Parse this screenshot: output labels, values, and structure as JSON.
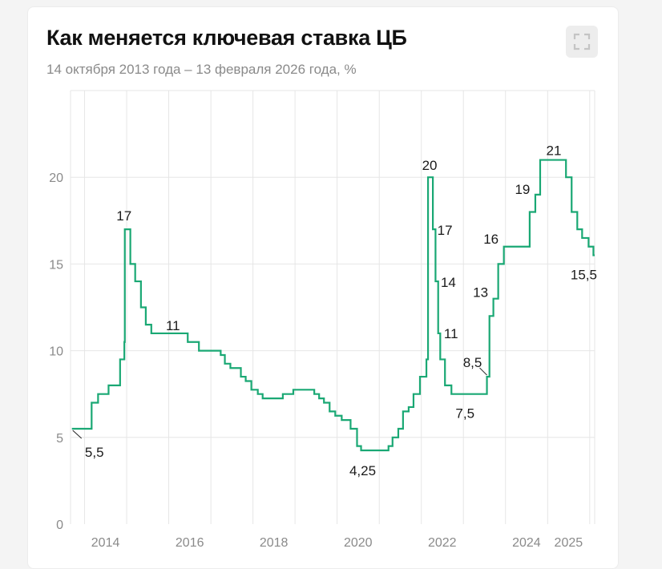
{
  "header": {
    "title": "Как меняется ключевая ставка ЦБ",
    "subtitle": "14 октября 2013 года – 13 февраля 2026 года, %",
    "expand_icon": "fullscreen-icon"
  },
  "chart_data": {
    "type": "line",
    "line_style": "step",
    "color": "#1aa874",
    "x_axis_type": "date",
    "xlim": [
      "2013-09-01",
      "2026-02-13"
    ],
    "ylim": [
      0,
      25
    ],
    "y_ticks": [
      0,
      5,
      10,
      15,
      20
    ],
    "y_tick_labels": [
      "0",
      "5",
      "10",
      "15",
      "20"
    ],
    "x_ticks": [
      "2014",
      "2016",
      "2018",
      "2020",
      "2022",
      "2024",
      "2025"
    ],
    "grid": true,
    "points": [
      [
        "2013-09-13",
        5.5
      ],
      [
        "2014-03-03",
        7
      ],
      [
        "2014-04-28",
        7.5
      ],
      [
        "2014-07-28",
        8
      ],
      [
        "2014-11-05",
        9.5
      ],
      [
        "2014-12-12",
        10.5
      ],
      [
        "2014-12-16",
        17
      ],
      [
        "2015-02-02",
        15
      ],
      [
        "2015-03-16",
        14
      ],
      [
        "2015-05-05",
        12.5
      ],
      [
        "2015-06-16",
        11.5
      ],
      [
        "2015-08-03",
        11
      ],
      [
        "2016-06-14",
        10.5
      ],
      [
        "2016-09-19",
        10
      ],
      [
        "2017-03-27",
        9.75
      ],
      [
        "2017-05-02",
        9.25
      ],
      [
        "2017-06-19",
        9
      ],
      [
        "2017-09-18",
        8.5
      ],
      [
        "2017-10-30",
        8.25
      ],
      [
        "2017-12-18",
        7.75
      ],
      [
        "2018-02-12",
        7.5
      ],
      [
        "2018-03-26",
        7.25
      ],
      [
        "2018-09-17",
        7.5
      ],
      [
        "2018-12-17",
        7.75
      ],
      [
        "2019-06-17",
        7.5
      ],
      [
        "2019-07-29",
        7.25
      ],
      [
        "2019-09-09",
        7
      ],
      [
        "2019-10-28",
        6.5
      ],
      [
        "2019-12-16",
        6.25
      ],
      [
        "2020-02-10",
        6
      ],
      [
        "2020-04-27",
        5.5
      ],
      [
        "2020-06-22",
        4.5
      ],
      [
        "2020-07-27",
        4.25
      ],
      [
        "2021-03-22",
        4.5
      ],
      [
        "2021-04-26",
        5
      ],
      [
        "2021-06-15",
        5.5
      ],
      [
        "2021-07-26",
        6.5
      ],
      [
        "2021-09-13",
        6.75
      ],
      [
        "2021-10-25",
        7.5
      ],
      [
        "2021-12-20",
        8.5
      ],
      [
        "2022-02-14",
        9.5
      ],
      [
        "2022-02-28",
        20
      ],
      [
        "2022-04-11",
        17
      ],
      [
        "2022-05-04",
        14
      ],
      [
        "2022-05-27",
        11
      ],
      [
        "2022-06-14",
        9.5
      ],
      [
        "2022-07-25",
        8
      ],
      [
        "2022-09-19",
        7.5
      ],
      [
        "2023-07-24",
        8.5
      ],
      [
        "2023-08-15",
        12
      ],
      [
        "2023-09-18",
        13
      ],
      [
        "2023-10-30",
        15
      ],
      [
        "2023-12-18",
        16
      ],
      [
        "2024-07-29",
        18
      ],
      [
        "2024-09-16",
        19
      ],
      [
        "2024-10-28",
        21
      ],
      [
        "2025-06-09",
        20
      ],
      [
        "2025-07-28",
        18
      ],
      [
        "2025-09-15",
        17
      ],
      [
        "2025-10-27",
        16.5
      ],
      [
        "2025-12-22",
        16
      ],
      [
        "2026-02-02",
        15.5
      ],
      [
        "2026-02-13",
        15.5
      ]
    ],
    "annotations": [
      {
        "text": "5,5",
        "date": "2013-09-13",
        "value": 5.5,
        "leader": true
      },
      {
        "text": "17",
        "date": "2014-12-16",
        "value": 17
      },
      {
        "text": "11",
        "date": "2015-08-03",
        "value": 11
      },
      {
        "text": "4,25",
        "date": "2020-07-27",
        "value": 4.25
      },
      {
        "text": "20",
        "date": "2022-02-28",
        "value": 20
      },
      {
        "text": "17",
        "date": "2022-04-11",
        "value": 17
      },
      {
        "text": "14",
        "date": "2022-05-04",
        "value": 14
      },
      {
        "text": "11",
        "date": "2022-05-27",
        "value": 11
      },
      {
        "text": "7,5",
        "date": "2022-09-19",
        "value": 7.5
      },
      {
        "text": "8,5",
        "date": "2023-07-24",
        "value": 8.5,
        "leader": true
      },
      {
        "text": "13",
        "date": "2023-09-18",
        "value": 13
      },
      {
        "text": "16",
        "date": "2023-12-18",
        "value": 16
      },
      {
        "text": "19",
        "date": "2024-09-16",
        "value": 19
      },
      {
        "text": "21",
        "date": "2024-10-28",
        "value": 21
      },
      {
        "text": "15,5",
        "date": "2026-02-02",
        "value": 15.5
      }
    ]
  }
}
